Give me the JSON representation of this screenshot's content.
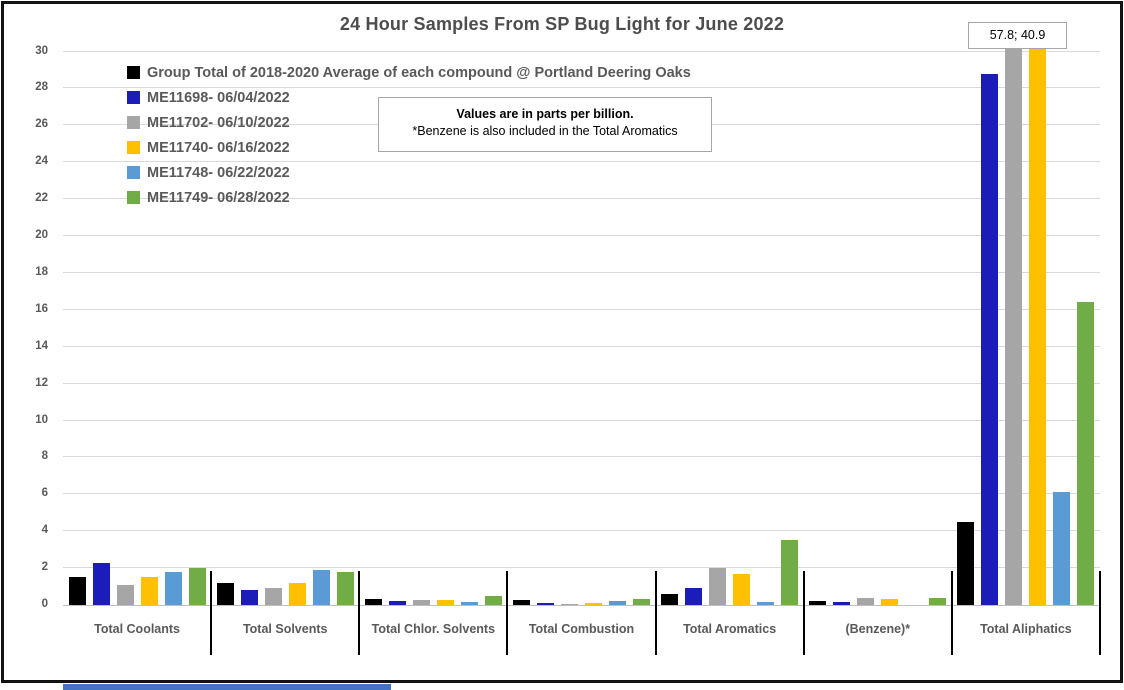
{
  "chart_data": {
    "type": "bar",
    "title": "24 Hour Samples From SP Bug Light for June 2022",
    "categories": [
      "Total Coolants",
      "Total Solvents",
      "Total Chlor. Solvents",
      "Total Combustion",
      "Total Aromatics",
      "(Benzene)*",
      "Total Aliphatics"
    ],
    "series": [
      {
        "name": "Group Total of 2018-2020 Average of each compound @ Portland Deering Oaks",
        "color": "#000000",
        "values": [
          1.5,
          1.2,
          0.3,
          0.25,
          0.6,
          0.2,
          4.5
        ]
      },
      {
        "name": "ME11698- 06/04/2022",
        "color": "#1c1cb8",
        "values": [
          2.3,
          0.8,
          0.2,
          0.1,
          0.9,
          0.15,
          28.8
        ]
      },
      {
        "name": "ME11702- 06/10/2022",
        "color": "#a6a6a6",
        "values": [
          1.1,
          0.9,
          0.25,
          0.05,
          2.0,
          0.4,
          57.8
        ]
      },
      {
        "name": "ME11740- 06/16/2022",
        "color": "#ffc000",
        "values": [
          1.5,
          1.2,
          0.25,
          0.1,
          1.7,
          0.3,
          40.9
        ]
      },
      {
        "name": "ME11748- 06/22/2022",
        "color": "#5b9bd5",
        "values": [
          1.8,
          1.9,
          0.15,
          0.2,
          0.15,
          0,
          6.1
        ]
      },
      {
        "name": "ME11749- 06/28/2022",
        "color": "#70ad47",
        "values": [
          2.0,
          1.8,
          0.5,
          0.3,
          3.5,
          0.4,
          16.4
        ]
      }
    ],
    "ylim": [
      0,
      30
    ],
    "yticks": [
      0,
      2,
      4,
      6,
      8,
      10,
      12,
      14,
      16,
      18,
      20,
      22,
      24,
      26,
      28,
      30
    ],
    "grid": true,
    "legend_position": "top-left",
    "ylabel": "",
    "xlabel": "",
    "annotations": {
      "note_line1": "Values are in parts per billion.",
      "note_line2": "*Benzene is also included in the Total Aromatics",
      "outlier_label": "57.8; 40.9",
      "outlier_meaning": "off-scale values of the gray and yellow Total Aliphatics bars"
    }
  },
  "colors": {
    "text": "#595959",
    "title_text": "#4d4d4d",
    "gridline": "#d9d9d9",
    "axis_line": "#bfbfbf",
    "separator": "#000000",
    "frame_border": "#121212",
    "bottom_strip": "#4472c4"
  }
}
